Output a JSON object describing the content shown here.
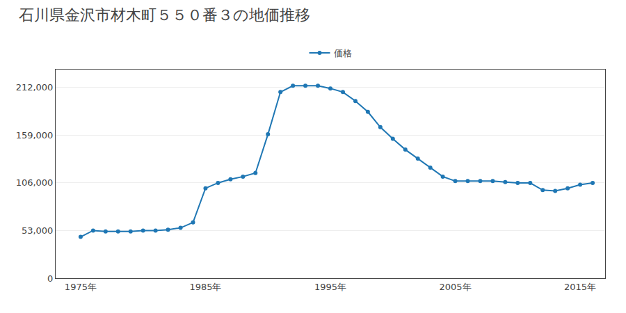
{
  "chart_data": {
    "type": "line",
    "title": "石川県金沢市材木町５５０番３の地価推移",
    "x": [
      1975,
      1976,
      1977,
      1978,
      1979,
      1980,
      1981,
      1982,
      1983,
      1984,
      1985,
      1986,
      1987,
      1988,
      1989,
      1990,
      1991,
      1992,
      1993,
      1994,
      1995,
      1996,
      1997,
      1998,
      1999,
      2000,
      2001,
      2002,
      2003,
      2004,
      2005,
      2006,
      2007,
      2008,
      2009,
      2010,
      2011,
      2012,
      2013,
      2014,
      2015,
      2016
    ],
    "series": [
      {
        "name": "価格",
        "marker": "circle",
        "values": [
          46000,
          53000,
          52000,
          52000,
          52000,
          53000,
          53000,
          54000,
          56000,
          62000,
          100000,
          106000,
          110000,
          113000,
          117000,
          160000,
          207000,
          214000,
          214000,
          214000,
          211000,
          207000,
          197000,
          185000,
          168000,
          155000,
          143000,
          133000,
          123000,
          113000,
          108000,
          108000,
          108000,
          108000,
          107000,
          106000,
          106000,
          98000,
          97000,
          100000,
          104000,
          106000
        ]
      }
    ],
    "xlim": [
      1973,
      2017
    ],
    "xticks": [
      {
        "value": 1975,
        "label": "1975年"
      },
      {
        "value": 1985,
        "label": "1985年"
      },
      {
        "value": 1995,
        "label": "1995年"
      },
      {
        "value": 2005,
        "label": "2005年"
      },
      {
        "value": 2015,
        "label": "2015年"
      }
    ],
    "ylim": [
      0,
      232000
    ],
    "yticks": [
      0,
      {
        "value": 53000,
        "label": "53,000"
      },
      {
        "value": 106000,
        "label": "106,000"
      },
      {
        "value": 159000,
        "label": "159,000"
      },
      {
        "value": 212000,
        "label": "212,000"
      }
    ],
    "grid": true,
    "legend": "top"
  }
}
